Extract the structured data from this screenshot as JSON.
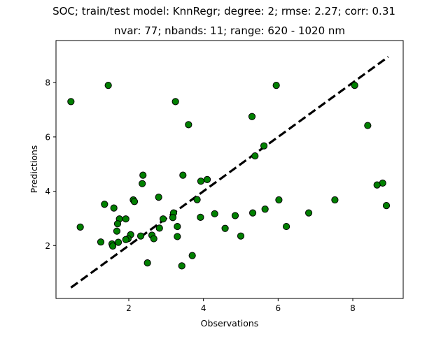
{
  "chart_data": {
    "type": "scatter",
    "title": "SOC; train/test model: KnnRegr; degree: 2; rmse: 2.27; corr: 0.31",
    "subtitle": "nvar: 77; nbands: 11; range: 620 - 1020 nm",
    "xlabel": "Observations",
    "ylabel": "Predictions",
    "xlim": [
      0.05,
      9.35
    ],
    "ylim": [
      0.05,
      9.55
    ],
    "xticks": [
      2,
      4,
      6,
      8
    ],
    "yticks": [
      2,
      4,
      6,
      8
    ],
    "grid": false,
    "legend": "none",
    "marker_color": "#008000",
    "marker_edge_color": "#000000",
    "reference_line": {
      "style": "dashed",
      "color": "#000000",
      "x": [
        0.45,
        8.95
      ],
      "y": [
        0.45,
        8.95
      ]
    },
    "points": [
      {
        "x": 0.45,
        "y": 7.3
      },
      {
        "x": 1.45,
        "y": 7.9
      },
      {
        "x": 3.25,
        "y": 7.3
      },
      {
        "x": 5.95,
        "y": 7.9
      },
      {
        "x": 8.05,
        "y": 7.9
      },
      {
        "x": 5.3,
        "y": 6.75
      },
      {
        "x": 3.6,
        "y": 6.45
      },
      {
        "x": 8.4,
        "y": 6.42
      },
      {
        "x": 5.62,
        "y": 5.67
      },
      {
        "x": 5.38,
        "y": 5.3
      },
      {
        "x": 2.38,
        "y": 4.59
      },
      {
        "x": 3.45,
        "y": 4.59
      },
      {
        "x": 2.36,
        "y": 4.28
      },
      {
        "x": 3.93,
        "y": 4.37
      },
      {
        "x": 4.1,
        "y": 4.43
      },
      {
        "x": 8.8,
        "y": 4.3
      },
      {
        "x": 8.65,
        "y": 4.23
      },
      {
        "x": 2.8,
        "y": 3.78
      },
      {
        "x": 3.83,
        "y": 3.69
      },
      {
        "x": 2.12,
        "y": 3.68
      },
      {
        "x": 2.15,
        "y": 3.62
      },
      {
        "x": 6.02,
        "y": 3.68
      },
      {
        "x": 7.52,
        "y": 3.68
      },
      {
        "x": 1.35,
        "y": 3.52
      },
      {
        "x": 1.6,
        "y": 3.38
      },
      {
        "x": 8.9,
        "y": 3.47
      },
      {
        "x": 5.65,
        "y": 3.34
      },
      {
        "x": 4.3,
        "y": 3.17
      },
      {
        "x": 3.2,
        "y": 3.2
      },
      {
        "x": 5.32,
        "y": 3.2
      },
      {
        "x": 6.82,
        "y": 3.2
      },
      {
        "x": 4.85,
        "y": 3.1
      },
      {
        "x": 3.92,
        "y": 3.04
      },
      {
        "x": 3.18,
        "y": 3.03
      },
      {
        "x": 2.92,
        "y": 2.98
      },
      {
        "x": 1.75,
        "y": 2.98
      },
      {
        "x": 1.92,
        "y": 2.98
      },
      {
        "x": 1.7,
        "y": 2.8
      },
      {
        "x": 0.7,
        "y": 2.68
      },
      {
        "x": 3.3,
        "y": 2.7
      },
      {
        "x": 2.82,
        "y": 2.64
      },
      {
        "x": 4.58,
        "y": 2.63
      },
      {
        "x": 6.22,
        "y": 2.7
      },
      {
        "x": 1.68,
        "y": 2.53
      },
      {
        "x": 2.05,
        "y": 2.4
      },
      {
        "x": 2.32,
        "y": 2.35
      },
      {
        "x": 2.62,
        "y": 2.38
      },
      {
        "x": 1.98,
        "y": 2.25
      },
      {
        "x": 1.92,
        "y": 2.22
      },
      {
        "x": 2.67,
        "y": 2.25
      },
      {
        "x": 3.3,
        "y": 2.33
      },
      {
        "x": 5.0,
        "y": 2.35
      },
      {
        "x": 1.25,
        "y": 2.13
      },
      {
        "x": 1.72,
        "y": 2.12
      },
      {
        "x": 1.55,
        "y": 2.06
      },
      {
        "x": 1.57,
        "y": 1.98
      },
      {
        "x": 3.7,
        "y": 1.63
      },
      {
        "x": 2.5,
        "y": 1.36
      },
      {
        "x": 3.42,
        "y": 1.25
      }
    ]
  }
}
